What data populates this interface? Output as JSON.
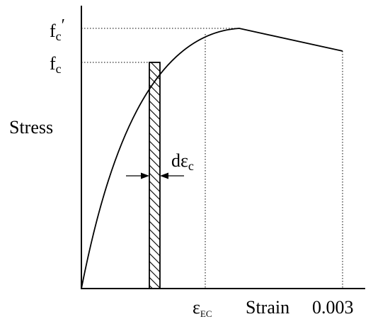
{
  "diagram": {
    "labels": {
      "fc_prime_main": "f",
      "fc_prime_sub": "c",
      "fc_prime_mark": "′",
      "fc_main": "f",
      "fc_sub": "c",
      "y_axis": "Stress",
      "d_eps_main": "dε",
      "d_eps_sub": "c",
      "eps_ec_main": "ε",
      "eps_ec_sub": "EC",
      "x_axis": "Strain",
      "ultimate_strain": "0.003"
    },
    "colors": {
      "line": "#000000",
      "background": "#ffffff"
    }
  }
}
